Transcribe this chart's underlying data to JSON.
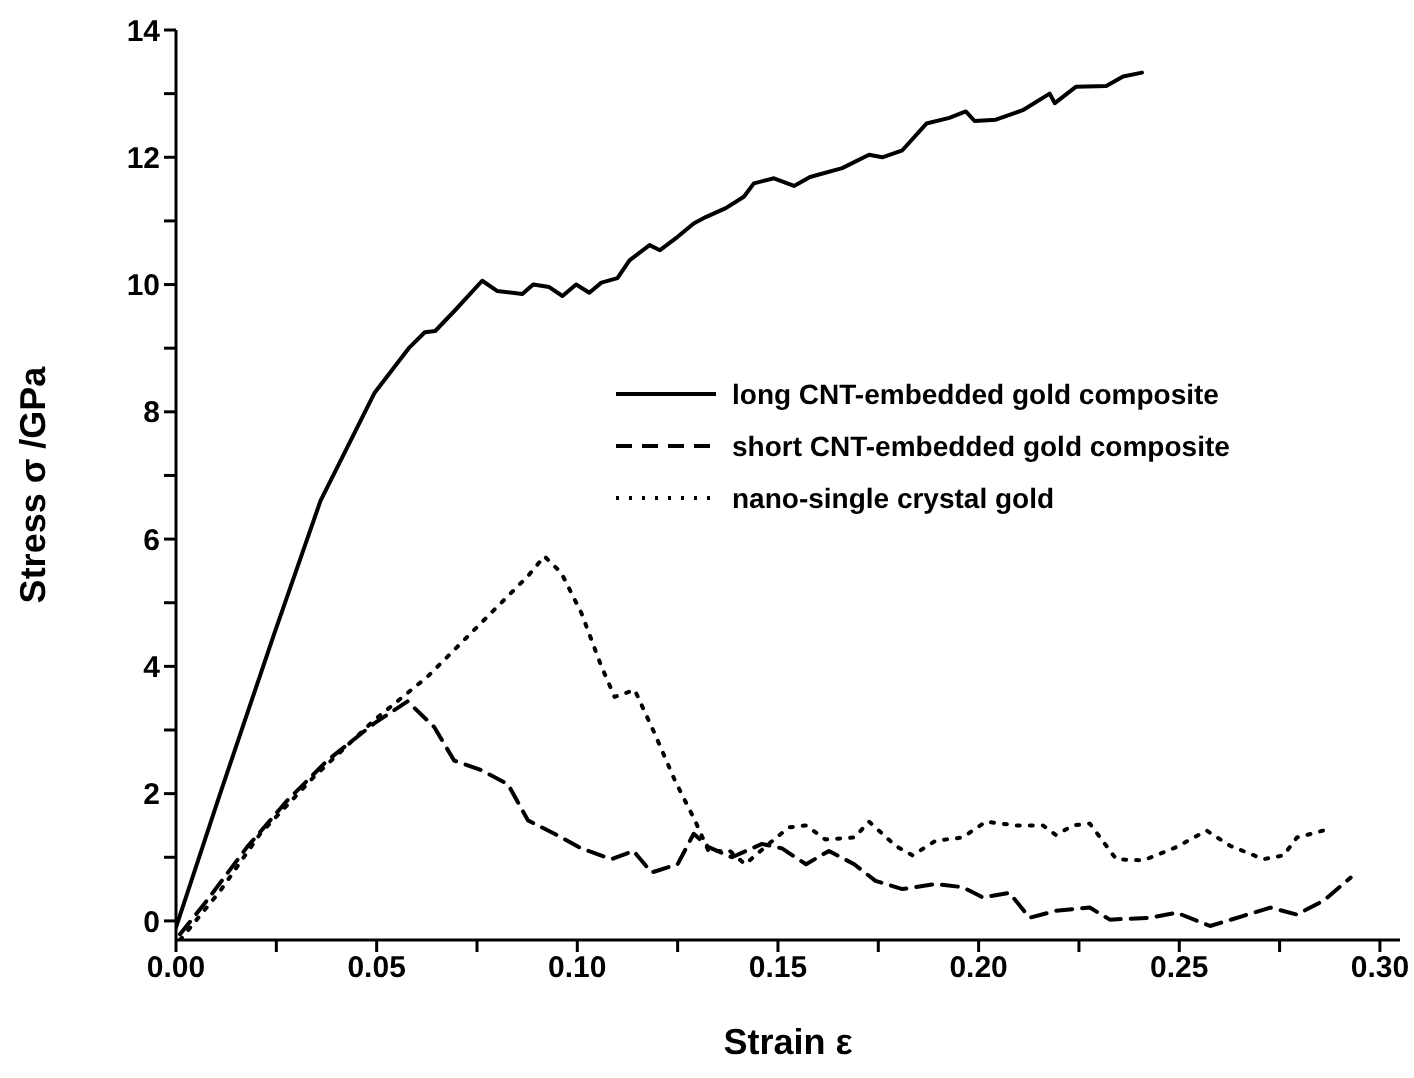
{
  "chart_data": {
    "type": "line",
    "xlabel": "Strain ε",
    "ylabel": "Stress σ /GPa",
    "xlim": [
      0,
      0.305
    ],
    "ylim": [
      -0.3,
      14
    ],
    "xticks": [
      {
        "value": 0,
        "label": "0.00"
      },
      {
        "value": 0.025,
        "label": null
      },
      {
        "value": 0.05,
        "label": "0.05"
      },
      {
        "value": 0.075,
        "label": null
      },
      {
        "value": 0.1,
        "label": "0.10"
      },
      {
        "value": 0.125,
        "label": null
      },
      {
        "value": 0.15,
        "label": "0.15"
      },
      {
        "value": 0.175,
        "label": null
      },
      {
        "value": 0.2,
        "label": "0.20"
      },
      {
        "value": 0.225,
        "label": null
      },
      {
        "value": 0.25,
        "label": "0.25"
      },
      {
        "value": 0.275,
        "label": null
      },
      {
        "value": 0.3,
        "label": "0.30"
      }
    ],
    "yticks": [
      0,
      {
        "value": 1,
        "label": null
      },
      2,
      {
        "value": 3,
        "label": null
      },
      4,
      {
        "value": 5,
        "label": null
      },
      6,
      {
        "value": 7,
        "label": null
      },
      8,
      {
        "value": 9,
        "label": null
      },
      10,
      {
        "value": 11,
        "label": null
      },
      12,
      {
        "value": 13,
        "label": null
      },
      14
    ],
    "grid": false,
    "legend": "right",
    "marker": "none",
    "series": [
      {
        "name": "long CNT-embedded gold composite",
        "color": "#000000",
        "line_style": "solid",
        "x": [
          0,
          0.011,
          0.0244,
          0.036,
          0.0495,
          0.058,
          0.062,
          0.0646,
          0.0696,
          0.0763,
          0.08,
          0.0863,
          0.089,
          0.093,
          0.0963,
          0.0997,
          0.103,
          0.106,
          0.11,
          0.113,
          0.118,
          0.1206,
          0.125,
          0.129,
          0.132,
          0.137,
          0.1415,
          0.144,
          0.149,
          0.154,
          0.158,
          0.166,
          0.1727,
          0.176,
          0.181,
          0.187,
          0.1927,
          0.1968,
          0.199,
          0.2043,
          0.211,
          0.2177,
          0.219,
          0.2243,
          0.2318,
          0.236,
          0.2407
        ],
        "values": [
          -0.1,
          2.0,
          4.5,
          6.6,
          8.3,
          9.0,
          9.25,
          9.27,
          9.6,
          10.06,
          9.9,
          9.85,
          10.0,
          9.96,
          9.82,
          10.0,
          9.87,
          10.03,
          10.1,
          10.38,
          10.62,
          10.54,
          10.75,
          10.96,
          11.06,
          11.2,
          11.38,
          11.59,
          11.67,
          11.55,
          11.69,
          11.83,
          12.04,
          12.0,
          12.11,
          12.53,
          12.62,
          12.72,
          12.57,
          12.59,
          12.74,
          13.0,
          12.85,
          13.11,
          13.12,
          13.27,
          13.33
        ]
      },
      {
        "name": "short CNT-embedded gold composite",
        "color": "#000000",
        "line_style": "dashed",
        "x": [
          0.001,
          0.0077,
          0.0177,
          0.0277,
          0.0377,
          0.0493,
          0.0577,
          0.0643,
          0.0693,
          0.076,
          0.0827,
          0.0877,
          0.0943,
          0.101,
          0.1085,
          0.114,
          0.1185,
          0.125,
          0.129,
          0.1327,
          0.1385,
          0.146,
          0.151,
          0.157,
          0.1627,
          0.169,
          0.1743,
          0.181,
          0.1893,
          0.196,
          0.201,
          0.2077,
          0.2127,
          0.2193,
          0.2277,
          0.2327,
          0.2427,
          0.2493,
          0.2577,
          0.266,
          0.2727,
          0.2793,
          0.286,
          0.2927
        ],
        "values": [
          -0.21,
          0.32,
          1.16,
          1.89,
          2.52,
          3.1,
          3.45,
          3.05,
          2.52,
          2.37,
          2.15,
          1.58,
          1.37,
          1.14,
          0.97,
          1.1,
          0.76,
          0.89,
          1.37,
          1.16,
          1.0,
          1.21,
          1.14,
          0.89,
          1.1,
          0.89,
          0.63,
          0.5,
          0.58,
          0.53,
          0.37,
          0.44,
          0.05,
          0.16,
          0.21,
          0.02,
          0.05,
          0.13,
          -0.08,
          0.08,
          0.21,
          0.1,
          0.32,
          0.68
        ]
      },
      {
        "name": "nano-single crystal gold",
        "color": "#000000",
        "line_style": "dotted",
        "x": [
          0.001,
          0.011,
          0.021,
          0.0343,
          0.0493,
          0.0627,
          0.076,
          0.0877,
          0.0918,
          0.096,
          0.101,
          0.106,
          0.1093,
          0.1143,
          0.1193,
          0.1243,
          0.1293,
          0.1327,
          0.138,
          0.1418,
          0.1477,
          0.1527,
          0.157,
          0.1618,
          0.169,
          0.1727,
          0.1793,
          0.1835,
          0.1893,
          0.196,
          0.2018,
          0.2093,
          0.216,
          0.2193,
          0.2235,
          0.2277,
          0.2343,
          0.241,
          0.2493,
          0.2568,
          0.2627,
          0.271,
          0.276,
          0.2793,
          0.2877
        ],
        "values": [
          -0.3,
          0.47,
          1.37,
          2.26,
          3.15,
          3.84,
          4.68,
          5.42,
          5.73,
          5.47,
          4.84,
          4.0,
          3.52,
          3.63,
          2.94,
          2.21,
          1.58,
          1.1,
          1.1,
          0.89,
          1.21,
          1.47,
          1.5,
          1.28,
          1.31,
          1.56,
          1.18,
          1.03,
          1.26,
          1.31,
          1.56,
          1.5,
          1.5,
          1.35,
          1.5,
          1.53,
          0.97,
          0.95,
          1.16,
          1.42,
          1.18,
          0.97,
          1.03,
          1.31,
          1.45
        ]
      }
    ]
  }
}
